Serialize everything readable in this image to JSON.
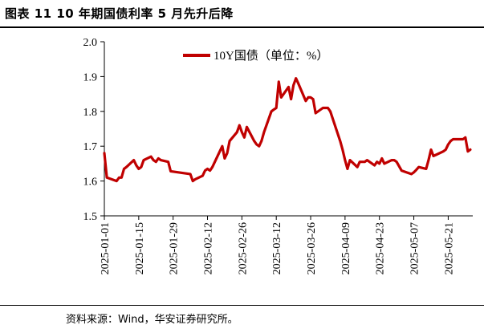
{
  "figure": {
    "title": "图表 11  10 年期国债利率 5 月先升后降",
    "source": "资料来源：Wind，华安证券研究所。"
  },
  "chart_data": {
    "type": "line",
    "title": "",
    "xlabel": "",
    "ylabel": "",
    "ylim": [
      1.5,
      2.0
    ],
    "yticks": [
      1.5,
      1.6,
      1.7,
      1.8,
      1.9,
      2.0
    ],
    "ytick_labels": [
      "1.5",
      "1.6",
      "1.7",
      "1.8",
      "1.9",
      "2.0"
    ],
    "xlim": [
      "2025-01-01",
      "2025-05-31"
    ],
    "xtick_labels": [
      "2025-01-01",
      "2025-01-15",
      "2025-01-29",
      "2025-02-12",
      "2025-02-26",
      "2025-03-12",
      "2025-03-26",
      "2025-04-09",
      "2025-04-23",
      "2025-05-07",
      "2025-05-21"
    ],
    "grid": false,
    "legend_position": "top-center",
    "series": [
      {
        "name": "10Y国债（单位：%）",
        "color": "#c00000",
        "points": [
          [
            "2025-01-01",
            1.68
          ],
          [
            "2025-01-02",
            1.61
          ],
          [
            "2025-01-06",
            1.6
          ],
          [
            "2025-01-07",
            1.61
          ],
          [
            "2025-01-08",
            1.61
          ],
          [
            "2025-01-09",
            1.635
          ],
          [
            "2025-01-10",
            1.64
          ],
          [
            "2025-01-13",
            1.66
          ],
          [
            "2025-01-14",
            1.645
          ],
          [
            "2025-01-15",
            1.635
          ],
          [
            "2025-01-16",
            1.64
          ],
          [
            "2025-01-17",
            1.66
          ],
          [
            "2025-01-20",
            1.67
          ],
          [
            "2025-01-21",
            1.66
          ],
          [
            "2025-01-22",
            1.655
          ],
          [
            "2025-01-23",
            1.665
          ],
          [
            "2025-01-24",
            1.66
          ],
          [
            "2025-01-27",
            1.655
          ],
          [
            "2025-01-28",
            1.628
          ],
          [
            "2025-02-05",
            1.62
          ],
          [
            "2025-02-06",
            1.6
          ],
          [
            "2025-02-07",
            1.605
          ],
          [
            "2025-02-10",
            1.615
          ],
          [
            "2025-02-11",
            1.63
          ],
          [
            "2025-02-12",
            1.635
          ],
          [
            "2025-02-13",
            1.63
          ],
          [
            "2025-02-14",
            1.64
          ],
          [
            "2025-02-17",
            1.685
          ],
          [
            "2025-02-18",
            1.7
          ],
          [
            "2025-02-19",
            1.665
          ],
          [
            "2025-02-20",
            1.68
          ],
          [
            "2025-02-21",
            1.715
          ],
          [
            "2025-02-24",
            1.74
          ],
          [
            "2025-02-25",
            1.76
          ],
          [
            "2025-02-26",
            1.74
          ],
          [
            "2025-02-27",
            1.725
          ],
          [
            "2025-02-28",
            1.755
          ],
          [
            "2025-03-03",
            1.715
          ],
          [
            "2025-03-04",
            1.705
          ],
          [
            "2025-03-05",
            1.7
          ],
          [
            "2025-03-06",
            1.715
          ],
          [
            "2025-03-07",
            1.74
          ],
          [
            "2025-03-10",
            1.8
          ],
          [
            "2025-03-11",
            1.805
          ],
          [
            "2025-03-12",
            1.81
          ],
          [
            "2025-03-13",
            1.885
          ],
          [
            "2025-03-14",
            1.84
          ],
          [
            "2025-03-17",
            1.87
          ],
          [
            "2025-03-18",
            1.835
          ],
          [
            "2025-03-19",
            1.875
          ],
          [
            "2025-03-20",
            1.895
          ],
          [
            "2025-03-21",
            1.88
          ],
          [
            "2025-03-24",
            1.83
          ],
          [
            "2025-03-25",
            1.84
          ],
          [
            "2025-03-26",
            1.84
          ],
          [
            "2025-03-27",
            1.835
          ],
          [
            "2025-03-28",
            1.795
          ],
          [
            "2025-03-31",
            1.81
          ],
          [
            "2025-04-01",
            1.81
          ],
          [
            "2025-04-02",
            1.81
          ],
          [
            "2025-04-03",
            1.8
          ],
          [
            "2025-04-07",
            1.715
          ],
          [
            "2025-04-08",
            1.69
          ],
          [
            "2025-04-09",
            1.66
          ],
          [
            "2025-04-10",
            1.635
          ],
          [
            "2025-04-11",
            1.66
          ],
          [
            "2025-04-14",
            1.64
          ],
          [
            "2025-04-15",
            1.655
          ],
          [
            "2025-04-16",
            1.655
          ],
          [
            "2025-04-17",
            1.655
          ],
          [
            "2025-04-18",
            1.66
          ],
          [
            "2025-04-21",
            1.645
          ],
          [
            "2025-04-22",
            1.655
          ],
          [
            "2025-04-23",
            1.65
          ],
          [
            "2025-04-24",
            1.665
          ],
          [
            "2025-04-25",
            1.65
          ],
          [
            "2025-04-28",
            1.66
          ],
          [
            "2025-04-29",
            1.66
          ],
          [
            "2025-04-30",
            1.655
          ],
          [
            "2025-05-02",
            1.63
          ],
          [
            "2025-05-06",
            1.62
          ],
          [
            "2025-05-07",
            1.625
          ],
          [
            "2025-05-08",
            1.632
          ],
          [
            "2025-05-09",
            1.64
          ],
          [
            "2025-05-12",
            1.635
          ],
          [
            "2025-05-13",
            1.66
          ],
          [
            "2025-05-14",
            1.69
          ],
          [
            "2025-05-15",
            1.672
          ],
          [
            "2025-05-16",
            1.675
          ],
          [
            "2025-05-19",
            1.685
          ],
          [
            "2025-05-20",
            1.69
          ],
          [
            "2025-05-21",
            1.705
          ],
          [
            "2025-05-22",
            1.715
          ],
          [
            "2025-05-23",
            1.72
          ],
          [
            "2025-05-26",
            1.72
          ],
          [
            "2025-05-27",
            1.72
          ],
          [
            "2025-05-28",
            1.725
          ],
          [
            "2025-05-29",
            1.685
          ],
          [
            "2025-05-30",
            1.69
          ]
        ]
      }
    ]
  }
}
